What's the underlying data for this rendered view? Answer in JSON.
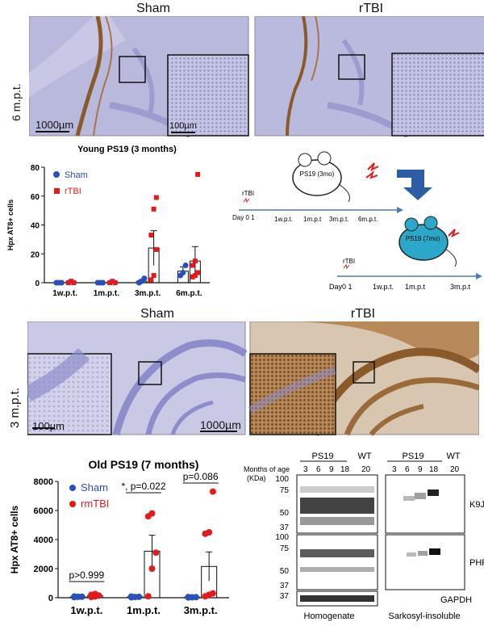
{
  "panelA": {
    "sham_label": "Sham",
    "rtbi_label": "rTBI",
    "timepoint": "6 m.p.t.",
    "scale_main": "1000µm",
    "scale_inset": "100µm"
  },
  "panelB": {
    "title": "Young PS19 (3 months)",
    "ylabel": "Hpx AT8+ cells",
    "legend": [
      "Sham",
      "rTBI"
    ]
  },
  "schema": {
    "rtbi1": "rTBI",
    "day1": "Day 0 1",
    "ticks1": [
      "1w.p.t.",
      "1m.p.t",
      "3m.p.t.",
      "6m.p.t."
    ],
    "mouse1": "PS19 (3mo)",
    "rtbi2": "rTBI",
    "day2": "Day0 1",
    "ticks2": [
      "1w.p.t.",
      "1m.p.t",
      "3m.p.t"
    ],
    "mouse2": "PS19 (7mo)"
  },
  "panelC": {
    "sham_label": "Sham",
    "rtbi_label": "rTBI",
    "timepoint": "3 m.p.t.",
    "scale_main": "1000µm",
    "scale_inset": "100µm"
  },
  "panelD": {
    "title": "Old PS19 (7 months)",
    "ylabel": "Hpx AT8+ cells",
    "legend": [
      "Sham",
      "rmTBI"
    ],
    "pvals": [
      "p>0.999",
      "*, p=0.022",
      "p=0.086"
    ]
  },
  "western": {
    "group1": "PS19",
    "group2": "WT",
    "group3": "PS19",
    "group4": "WT",
    "months_label": "Months of age",
    "kda_label": "(KDa)",
    "ages1": [
      "3",
      "6",
      "9",
      "18",
      "20"
    ],
    "ages2": [
      "3",
      "6",
      "9",
      "18",
      "20"
    ],
    "markers_top": [
      "100",
      "75",
      "50",
      "37"
    ],
    "markers_mid": [
      "100",
      "75",
      "50",
      "37"
    ],
    "markers_bot": [
      "37"
    ],
    "k9ja": "K9JA",
    "phf1": "PHF-1",
    "gapdh": "GAPDH",
    "homogenate": "Homogenate",
    "sarkosyl": "Sarkosyl-insoluble"
  },
  "colors": {
    "sham": "#2b4fbf",
    "rtbi": "#e41a1c",
    "tissue": "#b6b6dc",
    "brown": "#8a5a2b"
  },
  "chart_data": [
    {
      "type": "bar",
      "title": "Young PS19 (3 months)",
      "ylabel": "Hpx AT8+ cells",
      "categories": [
        "1w.p.t.",
        "1m.p.t.",
        "3m.p.t.",
        "6m.p.t."
      ],
      "ylim": [
        0,
        80
      ],
      "yticks": [
        0,
        20,
        40,
        60,
        80
      ],
      "series": [
        {
          "name": "Sham",
          "values": [
            0,
            0,
            1,
            8
          ],
          "errors": [
            0,
            0,
            1,
            3
          ],
          "points": [
            [
              0,
              0,
              0
            ],
            [
              0,
              0,
              0
            ],
            [
              0,
              1,
              3
            ],
            [
              5,
              7,
              12
            ]
          ]
        },
        {
          "name": "rTBI",
          "values": [
            0.5,
            0.5,
            24,
            15
          ],
          "errors": [
            0,
            0,
            12,
            10
          ],
          "points": [
            [
              0,
              1,
              0
            ],
            [
              0,
              1,
              0
            ],
            [
              2,
              5,
              23,
              33,
              51,
              59
            ],
            [
              4,
              5,
              7,
              12,
              15,
              75
            ]
          ]
        }
      ]
    },
    {
      "type": "bar",
      "title": "Old PS19 (7 months)",
      "ylabel": "Hpx AT8+ cells",
      "categories": [
        "1w.p.t.",
        "1m.p.t.",
        "3m.p.t."
      ],
      "ylim": [
        0,
        8000
      ],
      "yticks": [
        0,
        2000,
        4000,
        6000,
        8000
      ],
      "series": [
        {
          "name": "Sham",
          "values": [
            60,
            60,
            40
          ],
          "errors": [
            20,
            20,
            20
          ],
          "points": [
            [
              40,
              60,
              70,
              80
            ],
            [
              30,
              50,
              60,
              80
            ],
            [
              20,
              30,
              40,
              50
            ]
          ]
        },
        {
          "name": "rmTBI",
          "values": [
            130,
            3200,
            2150
          ],
          "errors": [
            50,
            1100,
            1000
          ],
          "points": [
            [
              50,
              90,
              150,
              200,
              260
            ],
            [
              100,
              2000,
              3100,
              5600,
              5800
            ],
            [
              100,
              200,
              300,
              4400,
              4500,
              7300
            ]
          ]
        }
      ]
    }
  ]
}
